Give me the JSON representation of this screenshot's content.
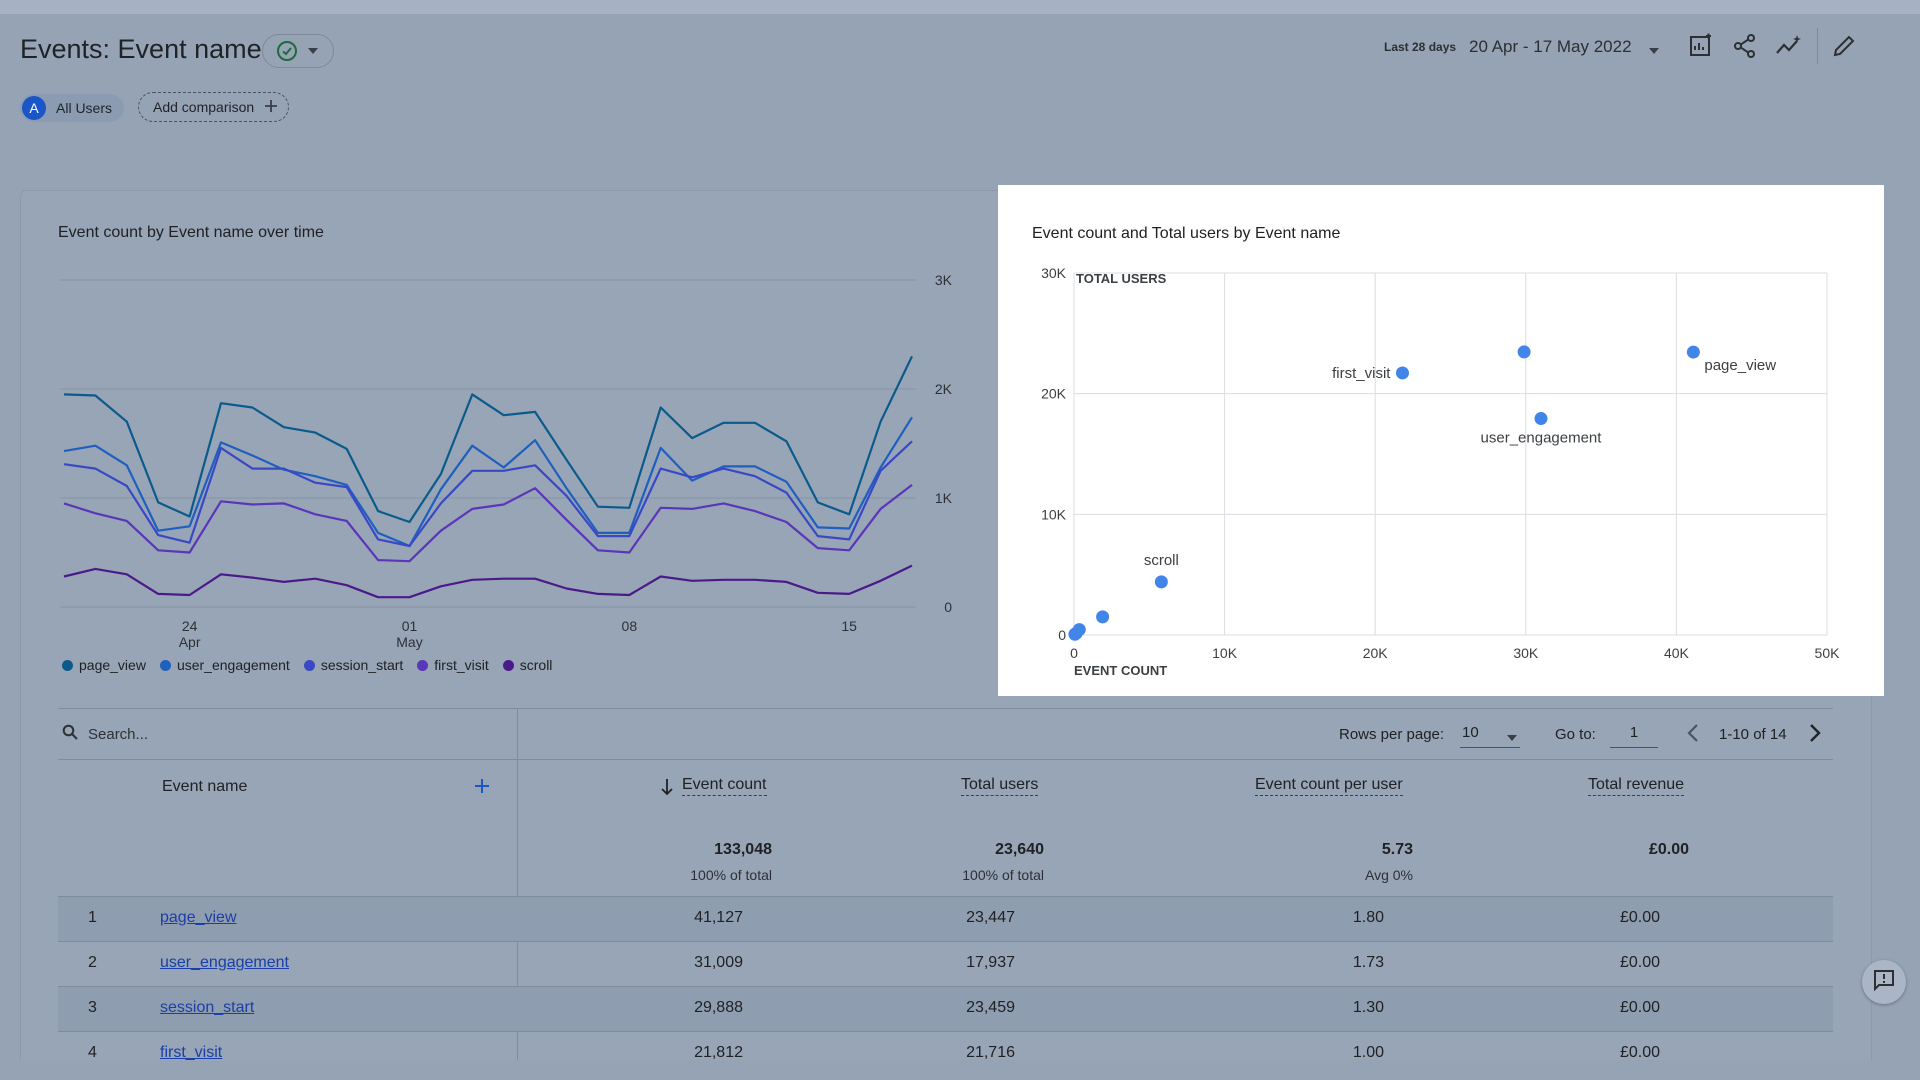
{
  "header": {
    "title": "Events: Event name",
    "date_label": "Last 28 days",
    "date_range": "20 Apr - 17 May 2022"
  },
  "chips": {
    "all_users_initial": "A",
    "all_users_label": "All Users",
    "add_comparison_label": "Add comparison"
  },
  "line_chart": {
    "title": "Event count by Event name over time",
    "y_ticks": [
      "3K",
      "2K",
      "1K",
      "0"
    ],
    "x_ticks": [
      {
        "day": "24",
        "month": "Apr",
        "index": 4
      },
      {
        "day": "01",
        "month": "May",
        "index": 11
      },
      {
        "day": "08",
        "month": "",
        "index": 18
      },
      {
        "day": "15",
        "month": "",
        "index": 25
      }
    ],
    "legend": [
      {
        "name": "page_view",
        "color": "#0b5a8c"
      },
      {
        "name": "user_engagement",
        "color": "#1f5fbf"
      },
      {
        "name": "session_start",
        "color": "#3a48c6"
      },
      {
        "name": "first_visit",
        "color": "#5a36b8"
      },
      {
        "name": "scroll",
        "color": "#4b1a8a"
      }
    ]
  },
  "scatter_chart": {
    "title": "Event count and Total users by Event name",
    "y_axis_label": "TOTAL USERS",
    "x_axis_label": "EVENT COUNT",
    "y_ticks": [
      "30K",
      "20K",
      "10K",
      "0"
    ],
    "x_ticks": [
      "0",
      "10K",
      "20K",
      "30K",
      "40K",
      "50K"
    ],
    "point_labels": [
      "first_visit",
      "page_view",
      "user_engagement",
      "scroll"
    ]
  },
  "chart_data": [
    {
      "type": "line",
      "title": "Event count by Event name over time",
      "xlabel": "",
      "ylabel": "",
      "ylim": [
        0,
        3000
      ],
      "x": [
        "20 Apr",
        "21 Apr",
        "22 Apr",
        "23 Apr",
        "24 Apr",
        "25 Apr",
        "26 Apr",
        "27 Apr",
        "28 Apr",
        "29 Apr",
        "30 Apr",
        "01 May",
        "02 May",
        "03 May",
        "04 May",
        "05 May",
        "06 May",
        "07 May",
        "08 May",
        "09 May",
        "10 May",
        "11 May",
        "12 May",
        "13 May",
        "14 May",
        "15 May",
        "16 May",
        "17 May"
      ],
      "series": [
        {
          "name": "page_view",
          "values": [
            1950,
            1940,
            1700,
            960,
            830,
            1870,
            1830,
            1650,
            1600,
            1450,
            880,
            780,
            1220,
            1950,
            1760,
            1790,
            1350,
            920,
            910,
            1830,
            1550,
            1690,
            1690,
            1520,
            960,
            850,
            1700,
            2300
          ]
        },
        {
          "name": "user_engagement",
          "values": [
            1430,
            1480,
            1300,
            700,
            740,
            1510,
            1390,
            1260,
            1200,
            1120,
            680,
            560,
            1080,
            1480,
            1280,
            1530,
            1090,
            680,
            680,
            1460,
            1160,
            1290,
            1290,
            1150,
            730,
            720,
            1280,
            1740
          ]
        },
        {
          "name": "session_start",
          "values": [
            1310,
            1270,
            1110,
            660,
            590,
            1460,
            1270,
            1270,
            1140,
            1100,
            620,
            560,
            950,
            1250,
            1250,
            1300,
            1020,
            650,
            650,
            1270,
            1190,
            1270,
            1200,
            1050,
            650,
            620,
            1250,
            1520
          ]
        },
        {
          "name": "first_visit",
          "values": [
            950,
            860,
            790,
            520,
            500,
            970,
            940,
            950,
            850,
            790,
            430,
            420,
            700,
            900,
            940,
            1090,
            800,
            520,
            500,
            910,
            900,
            950,
            880,
            780,
            540,
            520,
            900,
            1120
          ]
        },
        {
          "name": "scroll",
          "values": [
            280,
            350,
            300,
            120,
            110,
            300,
            270,
            230,
            260,
            200,
            90,
            90,
            190,
            250,
            260,
            260,
            170,
            120,
            110,
            280,
            240,
            250,
            250,
            230,
            130,
            120,
            240,
            380
          ]
        }
      ]
    },
    {
      "type": "scatter",
      "title": "Event count and Total users by Event name",
      "xlabel": "EVENT COUNT",
      "ylabel": "TOTAL USERS",
      "xlim": [
        0,
        50000
      ],
      "ylim": [
        0,
        30000
      ],
      "series": [
        {
          "name": "",
          "points": [
            {
              "label": "page_view",
              "x": 41127,
              "y": 23447
            },
            {
              "label": "user_engagement",
              "x": 31009,
              "y": 17937
            },
            {
              "label": "",
              "x": 29888,
              "y": 23459
            },
            {
              "label": "first_visit",
              "x": 21812,
              "y": 21716
            },
            {
              "label": "scroll",
              "x": 5800,
              "y": 4400
            },
            {
              "label": "",
              "x": 1900,
              "y": 1500
            },
            {
              "label": "",
              "x": 350,
              "y": 450
            },
            {
              "label": "",
              "x": 150,
              "y": 150
            },
            {
              "label": "",
              "x": 60,
              "y": 60
            }
          ]
        }
      ]
    }
  ],
  "table": {
    "search_placeholder": "Search...",
    "rows_per_page_label": "Rows per page:",
    "rows_per_page_value": "10",
    "goto_label": "Go to:",
    "goto_value": "1",
    "pager_text": "1-10 of 14",
    "columns": {
      "event_name": "Event name",
      "event_count": "Event count",
      "total_users": "Total users",
      "per_user": "Event count per user",
      "revenue": "Total revenue"
    },
    "totals": {
      "event_count": "133,048",
      "event_count_sub": "100% of total",
      "total_users": "23,640",
      "total_users_sub": "100% of total",
      "per_user": "5.73",
      "per_user_sub": "Avg 0%",
      "revenue": "£0.00"
    },
    "rows": [
      {
        "rank": "1",
        "name": "page_view",
        "count": "41,127",
        "users": "23,447",
        "per_user": "1.80",
        "revenue": "£0.00"
      },
      {
        "rank": "2",
        "name": "user_engagement",
        "count": "31,009",
        "users": "17,937",
        "per_user": "1.73",
        "revenue": "£0.00"
      },
      {
        "rank": "3",
        "name": "session_start",
        "count": "29,888",
        "users": "23,459",
        "per_user": "1.30",
        "revenue": "£0.00"
      },
      {
        "rank": "4",
        "name": "first_visit",
        "count": "21,812",
        "users": "21,716",
        "per_user": "1.00",
        "revenue": "£0.00"
      }
    ]
  }
}
